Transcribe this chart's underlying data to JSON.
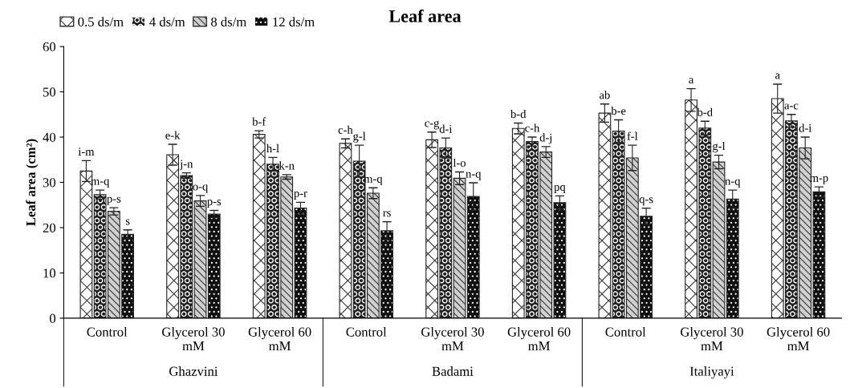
{
  "chart_data": {
    "type": "bar",
    "title": "Leaf area",
    "ylabel": "Leaf area (cm²)",
    "categories": [
      "Control",
      "Glycerol 30\nmM",
      "Glycerol 60\nmM",
      "Control",
      "Glycerol 30\nmM",
      "Glycerol 60\nmM",
      "Control",
      "Glycerol 30\nmM",
      "Glycerol 60\nmM"
    ],
    "annotations": [
      "Ghazvini",
      "Badami",
      "Italiyayi"
    ],
    "series": [
      {
        "name": "0.5 ds/m",
        "color": "#ffffff",
        "values": [
          32.5,
          36.1,
          40.6,
          38.6,
          39.4,
          41.9,
          45.3,
          48.2,
          48.5
        ],
        "errors": [
          2.3,
          2.3,
          0.8,
          1.0,
          1.7,
          1.2,
          2.0,
          2.5,
          3.2
        ],
        "value_labels": [
          "i-m",
          "e-k",
          "b-f",
          "c-h",
          "c-g",
          "b-d",
          "ab",
          "a",
          "a"
        ]
      },
      {
        "name": "4 ds/m",
        "color": "#202020",
        "values": [
          27.3,
          31.5,
          34.0,
          34.7,
          37.6,
          39.0,
          41.3,
          42.0,
          43.6
        ],
        "errors": [
          1.0,
          0.6,
          1.5,
          3.5,
          2.2,
          1.0,
          2.5,
          1.5,
          1.4
        ],
        "value_labels": [
          "m-q",
          "j-n",
          "h-l",
          "g-l",
          "d-i",
          "c-h",
          "b-e",
          "b-d",
          "a-c"
        ]
      },
      {
        "name": "8 ds/m",
        "color": "#d0d0d0",
        "values": [
          23.6,
          25.9,
          31.2,
          27.6,
          30.9,
          36.7,
          35.4,
          34.5,
          37.6
        ],
        "errors": [
          0.8,
          1.2,
          0.5,
          1.2,
          1.4,
          1.2,
          2.8,
          1.5,
          2.4
        ],
        "value_labels": [
          "p-s",
          "o-q",
          "k-n",
          "m-q",
          "l-o",
          "d-j",
          "f-l",
          "g-l",
          "d-i"
        ]
      },
      {
        "name": "12 ds/m",
        "color": "#101010",
        "values": [
          18.5,
          23.0,
          24.3,
          19.3,
          26.9,
          25.5,
          22.5,
          26.3,
          27.9
        ],
        "errors": [
          1.0,
          0.8,
          1.3,
          2.0,
          3.0,
          1.5,
          1.8,
          2.0,
          1.1
        ],
        "value_labels": [
          "s",
          "p-s",
          "p-r",
          "rs",
          "n-q",
          "pq",
          "q-s",
          "n-q",
          "m-p"
        ]
      }
    ],
    "ylim": [
      0,
      60
    ],
    "yticks": [
      0,
      10,
      20,
      30,
      40,
      50,
      60
    ],
    "grid": false,
    "legend": "top left"
  }
}
